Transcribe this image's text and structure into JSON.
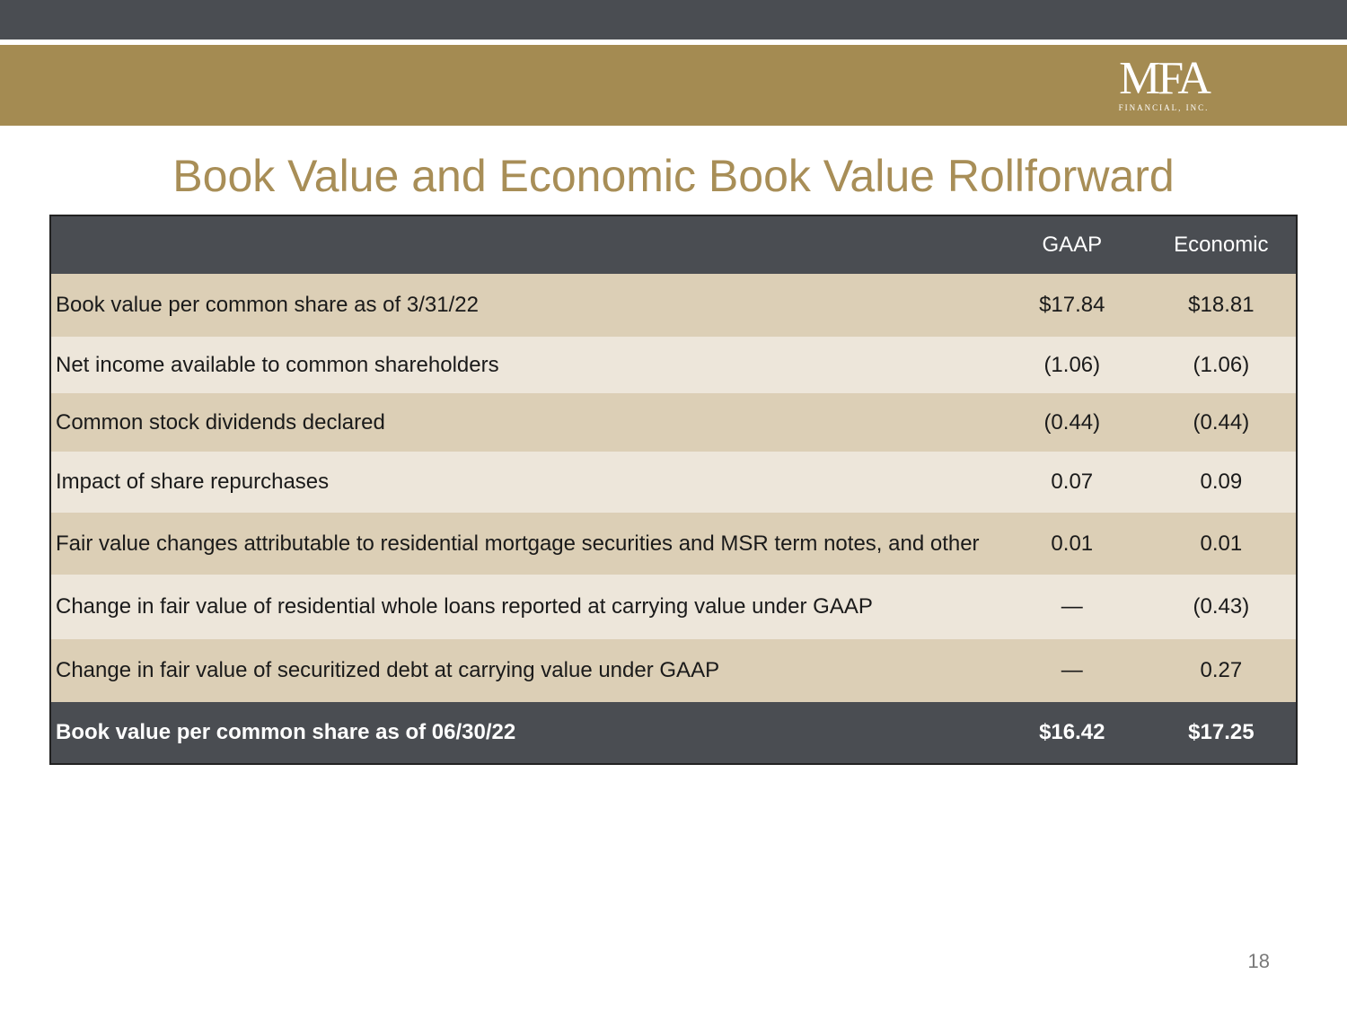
{
  "header": {
    "logo_mark": "MFA",
    "logo_sub": "FINANCIAL, INC.",
    "colors": {
      "dark_bar": "#4a4d52",
      "gold_band": "#a48b52",
      "title": "#a88e57",
      "row_dark": "#dccfb6",
      "row_light": "#ede6da"
    }
  },
  "title": "Book Value and Economic Book Value Rollforward",
  "table": {
    "columns": [
      "",
      "GAAP",
      "Economic"
    ],
    "rows": [
      {
        "label": "Book value per common share as of 3/31/22",
        "gaap": "$17.84",
        "economic": "$18.81"
      },
      {
        "label": "Net income available to common shareholders",
        "gaap": "(1.06)",
        "economic": "(1.06)"
      },
      {
        "label": "Common stock dividends declared",
        "gaap": "(0.44)",
        "economic": "(0.44)"
      },
      {
        "label": "Impact of share repurchases",
        "gaap": "0.07",
        "economic": "0.09"
      },
      {
        "label": "Fair value changes attributable to residential mortgage securities and MSR term notes, and other",
        "gaap": "0.01",
        "economic": "0.01"
      },
      {
        "label": "Change in fair value of residential whole loans reported at carrying value under GAAP",
        "gaap": "—",
        "economic": "(0.43)"
      },
      {
        "label": "Change in fair value of securitized debt at carrying value under GAAP",
        "gaap": "—",
        "economic": "0.27"
      }
    ],
    "total": {
      "label": "Book value per common share as of 06/30/22",
      "gaap": "$16.42",
      "economic": "$17.25"
    }
  },
  "page_number": "18"
}
